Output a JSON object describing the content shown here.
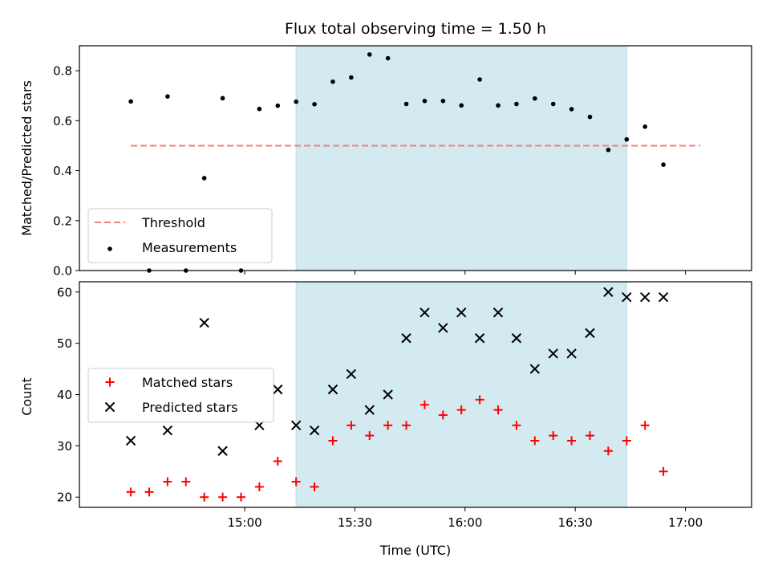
{
  "chart_data": {
    "title": "Flux total observing time = 1.50 h",
    "xlabel": "Time (UTC)",
    "x_tick_labels": [
      "15:00",
      "15:30",
      "16:00",
      "16:30",
      "17:00"
    ],
    "x_tick_minutes": [
      900,
      930,
      960,
      990,
      1020
    ],
    "shaded_span": {
      "start": "15:14",
      "end": "16:44",
      "color": "#d3eaf1"
    },
    "top": {
      "type": "scatter",
      "ylabel": "Matched/Predicted stars",
      "ylim": [
        0,
        0.9
      ],
      "y_ticks": [
        0.0,
        0.2,
        0.4,
        0.6,
        0.8
      ],
      "y_tick_labels": [
        "0.0",
        "0.2",
        "0.4",
        "0.6",
        "0.8"
      ],
      "threshold": {
        "name": "Threshold",
        "value": 0.5,
        "x_start": "14:29",
        "x_end": "17:04",
        "color": "#f07f7f"
      },
      "series": [
        {
          "name": "Measurements",
          "color": "#000000",
          "x": [
            "14:29",
            "14:34",
            "14:39",
            "14:44",
            "14:49",
            "14:54",
            "14:59",
            "15:04",
            "15:09",
            "15:14",
            "15:19",
            "15:24",
            "15:29",
            "15:34",
            "15:39",
            "15:44",
            "15:49",
            "15:54",
            "15:59",
            "16:04",
            "16:09",
            "16:14",
            "16:19",
            "16:24",
            "16:29",
            "16:34",
            "16:39",
            "16:44",
            "16:49",
            "16:54",
            "16:59",
            "17:04"
          ],
          "y": [
            0.677,
            0.0,
            0.697,
            0.0,
            0.37,
            0.69,
            0.0,
            0.647,
            0.66,
            0.676,
            0.666,
            0.756,
            0.773,
            0.865,
            0.85,
            0.667,
            0.679,
            0.679,
            0.661,
            0.765,
            0.661,
            0.667,
            0.689,
            0.667,
            0.646,
            0.615,
            0.483,
            0.525,
            0.576,
            0.424,
            null,
            null
          ]
        }
      ],
      "legend_loc": "lower left"
    },
    "bottom": {
      "type": "scatter",
      "ylabel": "Count",
      "ylim": [
        18,
        62
      ],
      "y_ticks": [
        20,
        30,
        40,
        50,
        60
      ],
      "y_tick_labels": [
        "20",
        "30",
        "40",
        "50",
        "60"
      ],
      "series": [
        {
          "name": "Matched stars",
          "color": "#ff0000",
          "marker": "plus",
          "x": [
            "14:29",
            "14:34",
            "14:39",
            "14:44",
            "14:49",
            "14:54",
            "14:59",
            "15:04",
            "15:09",
            "15:14",
            "15:19",
            "15:24",
            "15:29",
            "15:34",
            "15:39",
            "15:44",
            "15:49",
            "15:54",
            "15:59",
            "16:04",
            "16:09",
            "16:14",
            "16:19",
            "16:24",
            "16:29",
            "16:34",
            "16:39",
            "16:44",
            "16:49",
            "16:54",
            "16:59",
            "17:04"
          ],
          "y": [
            21,
            21,
            23,
            23,
            20,
            20,
            20,
            22,
            27,
            23,
            22,
            31,
            34,
            32,
            34,
            34,
            38,
            36,
            37,
            39,
            37,
            34,
            31,
            32,
            31,
            32,
            29,
            31,
            34,
            25,
            null,
            null
          ]
        },
        {
          "name": "Predicted stars",
          "color": "#000000",
          "marker": "x",
          "x": [
            "14:29",
            "14:39",
            "14:49",
            "14:54",
            "15:04",
            "15:09",
            "15:14",
            "15:19",
            "15:24",
            "15:29",
            "15:34",
            "15:39",
            "15:44",
            "15:49",
            "15:54",
            "15:59",
            "16:04",
            "16:09",
            "16:14",
            "16:19",
            "16:24",
            "16:29",
            "16:34",
            "16:39",
            "16:44",
            "16:49",
            "16:54",
            "16:59",
            "17:04"
          ],
          "y": [
            31,
            33,
            54,
            29,
            34,
            41,
            34,
            33,
            41,
            44,
            37,
            40,
            51,
            56,
            53,
            56,
            51,
            56,
            51,
            45,
            48,
            48,
            52,
            60,
            59,
            59,
            59,
            null,
            null
          ]
        }
      ],
      "legend_loc": "center left"
    }
  }
}
